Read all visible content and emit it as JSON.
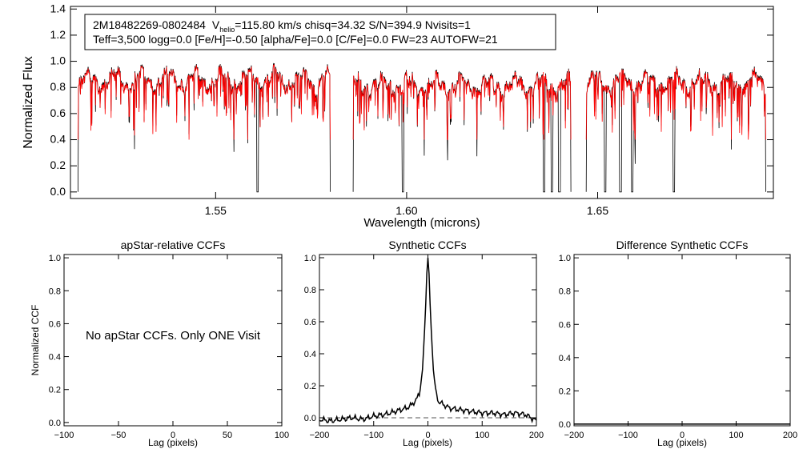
{
  "colors": {
    "observed": "#000000",
    "model": "#ff0000",
    "axis": "#000000",
    "dashed": "#555555"
  },
  "info_box": {
    "line1_star": "2M18482269-0802484",
    "line1_vhelio_prefix": "V",
    "line1_vhelio_sub": "helio",
    "line1_rest": "=115.80 km/s  chisq=34.32  S/N=394.9  Nvisits=1",
    "line2": "Teff=3,500 logg=0.0 [Fe/H]=-0.50 [alpha/Fe]=0.0 [C/Fe]=0.0 FW=23 AUTOFW=21"
  },
  "chart_data": [
    {
      "id": "spectrum",
      "type": "line",
      "title": "",
      "xlabel": "Wavelength (microns)",
      "ylabel": "Normalized Flux",
      "xlim": [
        1.512,
        1.696
      ],
      "ylim": [
        -0.05,
        1.42
      ],
      "xticks": [
        1.55,
        1.6,
        1.65
      ],
      "xtick_labels": [
        "1.55",
        "1.60",
        "1.65"
      ],
      "yticks": [
        0.0,
        0.2,
        0.4,
        0.6,
        0.8,
        1.0,
        1.2,
        1.4
      ],
      "ytick_labels": [
        "0.0",
        "0.2",
        "0.4",
        "0.6",
        "0.8",
        "1.0",
        "1.2",
        "1.4"
      ],
      "detector_chips": [
        {
          "x": [
            1.514,
            1.58
          ],
          "median": 0.9
        },
        {
          "x": [
            1.586,
            1.643
          ],
          "median": 0.86
        },
        {
          "x": [
            1.647,
            1.694
          ],
          "median": 0.88
        }
      ],
      "series": [
        {
          "name": "observed",
          "approx_continuum": 0.9,
          "deep_lines": [
            1.561,
            1.599,
            1.636,
            1.638,
            1.64,
            1.652,
            1.656,
            1.659,
            1.67
          ]
        },
        {
          "name": "model",
          "approx_continuum": 0.88
        }
      ]
    },
    {
      "id": "apstar_ccf",
      "type": "line",
      "title": "apStar-relative CCFs",
      "xlabel": "Lag (pixels)",
      "ylabel": "Normalized CCF",
      "xlim": [
        -100,
        100
      ],
      "ylim": [
        -0.02,
        1.02
      ],
      "xticks": [
        -100,
        -50,
        0,
        50,
        100
      ],
      "xtick_labels": [
        "−100",
        "−50",
        "0",
        "50",
        "100"
      ],
      "yticks": [
        0.0,
        0.2,
        0.4,
        0.6,
        0.8,
        1.0
      ],
      "ytick_labels": [
        "0.0",
        "0.2",
        "0.4",
        "0.6",
        "0.8",
        "1.0"
      ],
      "annotation": "No apStar CCFs.  Only ONE Visit",
      "series": []
    },
    {
      "id": "synthetic_ccf",
      "type": "line",
      "title": "Synthetic CCFs",
      "xlabel": "Lag (pixels)",
      "ylabel": "",
      "xlim": [
        -200,
        200
      ],
      "ylim": [
        -0.05,
        1.02
      ],
      "xticks": [
        -200,
        -100,
        0,
        100,
        200
      ],
      "xtick_labels": [
        "−200",
        "−100",
        "0",
        "100",
        "200"
      ],
      "yticks": [
        0.0,
        0.2,
        0.4,
        0.6,
        0.8,
        1.0
      ],
      "ytick_labels": [
        "0.0",
        "0.2",
        "0.4",
        "0.6",
        "0.8",
        "1.0"
      ],
      "baseline": 0.0,
      "series": [
        {
          "name": "ccf",
          "peak_lag": 0,
          "peak_value": 1.0,
          "x": [
            -200,
            -180,
            -160,
            -140,
            -120,
            -100,
            -80,
            -60,
            -40,
            -30,
            -20,
            -15,
            -10,
            -5,
            -2,
            0,
            2,
            5,
            10,
            15,
            20,
            30,
            40,
            60,
            80,
            100,
            120,
            140,
            160,
            180,
            200
          ],
          "y": [
            -0.01,
            -0.02,
            -0.01,
            0.0,
            -0.01,
            0.01,
            0.02,
            0.04,
            0.06,
            0.08,
            0.12,
            0.16,
            0.3,
            0.62,
            0.9,
            1.0,
            0.9,
            0.62,
            0.3,
            0.15,
            0.1,
            0.08,
            0.06,
            0.05,
            0.04,
            0.03,
            0.03,
            0.02,
            0.03,
            0.02,
            -0.02
          ]
        }
      ]
    },
    {
      "id": "difference_ccf",
      "type": "line",
      "title": "Difference Synthetic CCFs",
      "xlabel": "Lag (pixels)",
      "ylabel": "",
      "xlim": [
        -200,
        200
      ],
      "ylim": [
        -0.01,
        1.02
      ],
      "xticks": [
        -200,
        -100,
        0,
        100,
        200
      ],
      "xtick_labels": [
        "−200",
        "−100",
        "0",
        "100",
        "200"
      ],
      "yticks": [
        0.0,
        0.2,
        0.4,
        0.6,
        0.8,
        1.0
      ],
      "ytick_labels": [
        "0.0",
        "0.2",
        "0.4",
        "0.6",
        "0.8",
        "1.0"
      ],
      "series": [
        {
          "name": "difference",
          "x": [
            -200,
            200
          ],
          "y": [
            0.0,
            0.0
          ]
        }
      ]
    }
  ]
}
